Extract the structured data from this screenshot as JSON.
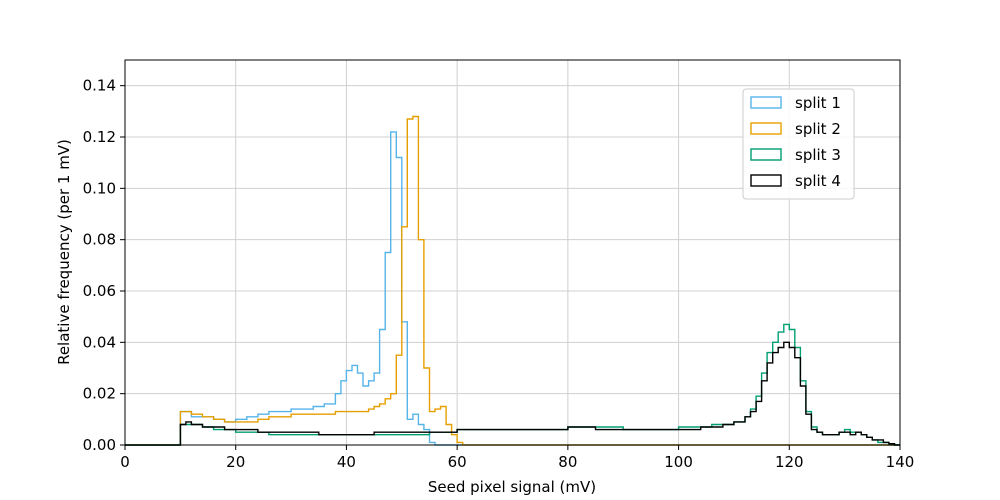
{
  "chart_data": {
    "type": "line",
    "style": "step-histogram",
    "xlabel": "Seed pixel signal (mV)",
    "ylabel": "Relative frequency (per 1 mV)",
    "xlim": [
      0,
      140
    ],
    "ylim": [
      0,
      0.15
    ],
    "x_ticks": [
      0,
      20,
      40,
      60,
      80,
      100,
      120,
      140
    ],
    "x_tick_labels": [
      "0",
      "20",
      "40",
      "60",
      "80",
      "100",
      "120",
      "140"
    ],
    "y_ticks": [
      0,
      0.02,
      0.04,
      0.06,
      0.08,
      0.1,
      0.12,
      0.14
    ],
    "y_tick_labels": [
      "0.00",
      "0.02",
      "0.04",
      "0.06",
      "0.08",
      "0.10",
      "0.12",
      "0.14"
    ],
    "grid": true,
    "legend_position": "top-right",
    "bin_width": 1,
    "series": [
      {
        "name": "split 1",
        "color": "#56b4e9",
        "points": [
          [
            0,
            0
          ],
          [
            10,
            0.013
          ],
          [
            12,
            0.011
          ],
          [
            14,
            0.011
          ],
          [
            16,
            0.01
          ],
          [
            18,
            0.009
          ],
          [
            20,
            0.01
          ],
          [
            22,
            0.011
          ],
          [
            24,
            0.012
          ],
          [
            26,
            0.013
          ],
          [
            28,
            0.013
          ],
          [
            30,
            0.014
          ],
          [
            32,
            0.014
          ],
          [
            34,
            0.015
          ],
          [
            36,
            0.016
          ],
          [
            38,
            0.02
          ],
          [
            39,
            0.025
          ],
          [
            40,
            0.029
          ],
          [
            41,
            0.031
          ],
          [
            42,
            0.028
          ],
          [
            43,
            0.023
          ],
          [
            44,
            0.025
          ],
          [
            45,
            0.028
          ],
          [
            46,
            0.045
          ],
          [
            47,
            0.075
          ],
          [
            48,
            0.122
          ],
          [
            49,
            0.112
          ],
          [
            50,
            0.048
          ],
          [
            51,
            0.01
          ],
          [
            52,
            0.012
          ],
          [
            53,
            0.008
          ],
          [
            54,
            0.006
          ],
          [
            55,
            0.001
          ],
          [
            56,
            0
          ],
          [
            140,
            0
          ]
        ]
      },
      {
        "name": "split 2",
        "color": "#e69f00",
        "points": [
          [
            0,
            0
          ],
          [
            10,
            0.013
          ],
          [
            12,
            0.012
          ],
          [
            14,
            0.011
          ],
          [
            16,
            0.01
          ],
          [
            18,
            0.009
          ],
          [
            20,
            0.009
          ],
          [
            22,
            0.009
          ],
          [
            24,
            0.01
          ],
          [
            26,
            0.011
          ],
          [
            28,
            0.011
          ],
          [
            30,
            0.012
          ],
          [
            32,
            0.012
          ],
          [
            34,
            0.012
          ],
          [
            36,
            0.012
          ],
          [
            38,
            0.013
          ],
          [
            40,
            0.013
          ],
          [
            42,
            0.013
          ],
          [
            44,
            0.014
          ],
          [
            45,
            0.015
          ],
          [
            46,
            0.016
          ],
          [
            47,
            0.018
          ],
          [
            48,
            0.02
          ],
          [
            49,
            0.035
          ],
          [
            50,
            0.085
          ],
          [
            51,
            0.127
          ],
          [
            52,
            0.128
          ],
          [
            53,
            0.08
          ],
          [
            54,
            0.03
          ],
          [
            55,
            0.013
          ],
          [
            56,
            0.014
          ],
          [
            57,
            0.015
          ],
          [
            58,
            0.008
          ],
          [
            59,
            0.004
          ],
          [
            60,
            0.001
          ],
          [
            61,
            0
          ],
          [
            140,
            0
          ]
        ]
      },
      {
        "name": "split 3",
        "color": "#009e73",
        "points": [
          [
            0,
            0
          ],
          [
            10,
            0.008
          ],
          [
            12,
            0.008
          ],
          [
            14,
            0.007
          ],
          [
            16,
            0.006
          ],
          [
            18,
            0.006
          ],
          [
            20,
            0.005
          ],
          [
            22,
            0.005
          ],
          [
            24,
            0.005
          ],
          [
            26,
            0.004
          ],
          [
            28,
            0.004
          ],
          [
            30,
            0.004
          ],
          [
            35,
            0.004
          ],
          [
            40,
            0.004
          ],
          [
            45,
            0.004
          ],
          [
            50,
            0.004
          ],
          [
            55,
            0.005
          ],
          [
            60,
            0.006
          ],
          [
            65,
            0.006
          ],
          [
            70,
            0.006
          ],
          [
            75,
            0.006
          ],
          [
            80,
            0.007
          ],
          [
            85,
            0.007
          ],
          [
            90,
            0.006
          ],
          [
            95,
            0.006
          ],
          [
            100,
            0.007
          ],
          [
            104,
            0.007
          ],
          [
            106,
            0.008
          ],
          [
            108,
            0.008
          ],
          [
            110,
            0.009
          ],
          [
            112,
            0.011
          ],
          [
            113,
            0.014
          ],
          [
            114,
            0.019
          ],
          [
            115,
            0.028
          ],
          [
            116,
            0.036
          ],
          [
            117,
            0.04
          ],
          [
            118,
            0.044
          ],
          [
            119,
            0.047
          ],
          [
            120,
            0.045
          ],
          [
            121,
            0.038
          ],
          [
            122,
            0.025
          ],
          [
            123,
            0.013
          ],
          [
            124,
            0.007
          ],
          [
            125,
            0.005
          ],
          [
            126,
            0.004
          ],
          [
            127,
            0.004
          ],
          [
            128,
            0.004
          ],
          [
            129,
            0.005
          ],
          [
            130,
            0.006
          ],
          [
            131,
            0.005
          ],
          [
            132,
            0.005
          ],
          [
            133,
            0.004
          ],
          [
            134,
            0.003
          ],
          [
            135,
            0.002
          ],
          [
            136,
            0.001
          ],
          [
            137,
            0.001
          ],
          [
            138,
            0.0005
          ],
          [
            139,
            0
          ],
          [
            140,
            0
          ]
        ]
      },
      {
        "name": "split 4",
        "color": "#000000",
        "points": [
          [
            0,
            0
          ],
          [
            10,
            0.008
          ],
          [
            11,
            0.009
          ],
          [
            12,
            0.008
          ],
          [
            14,
            0.007
          ],
          [
            16,
            0.007
          ],
          [
            18,
            0.006
          ],
          [
            20,
            0.006
          ],
          [
            22,
            0.006
          ],
          [
            24,
            0.005
          ],
          [
            26,
            0.005
          ],
          [
            28,
            0.005
          ],
          [
            30,
            0.005
          ],
          [
            35,
            0.004
          ],
          [
            40,
            0.004
          ],
          [
            45,
            0.005
          ],
          [
            50,
            0.005
          ],
          [
            55,
            0.005
          ],
          [
            60,
            0.006
          ],
          [
            65,
            0.006
          ],
          [
            70,
            0.006
          ],
          [
            75,
            0.006
          ],
          [
            80,
            0.007
          ],
          [
            85,
            0.006
          ],
          [
            90,
            0.006
          ],
          [
            95,
            0.006
          ],
          [
            100,
            0.006
          ],
          [
            104,
            0.007
          ],
          [
            106,
            0.007
          ],
          [
            108,
            0.008
          ],
          [
            110,
            0.009
          ],
          [
            112,
            0.011
          ],
          [
            113,
            0.013
          ],
          [
            114,
            0.017
          ],
          [
            115,
            0.025
          ],
          [
            116,
            0.032
          ],
          [
            117,
            0.036
          ],
          [
            118,
            0.038
          ],
          [
            119,
            0.04
          ],
          [
            120,
            0.038
          ],
          [
            121,
            0.034
          ],
          [
            122,
            0.023
          ],
          [
            123,
            0.012
          ],
          [
            124,
            0.006
          ],
          [
            125,
            0.005
          ],
          [
            126,
            0.004
          ],
          [
            127,
            0.004
          ],
          [
            128,
            0.004
          ],
          [
            129,
            0.005
          ],
          [
            130,
            0.005
          ],
          [
            131,
            0.004
          ],
          [
            132,
            0.005
          ],
          [
            133,
            0.004
          ],
          [
            134,
            0.003
          ],
          [
            135,
            0.002
          ],
          [
            136,
            0.002
          ],
          [
            137,
            0.001
          ],
          [
            138,
            0.0005
          ],
          [
            139,
            0
          ],
          [
            140,
            0
          ]
        ]
      }
    ]
  }
}
